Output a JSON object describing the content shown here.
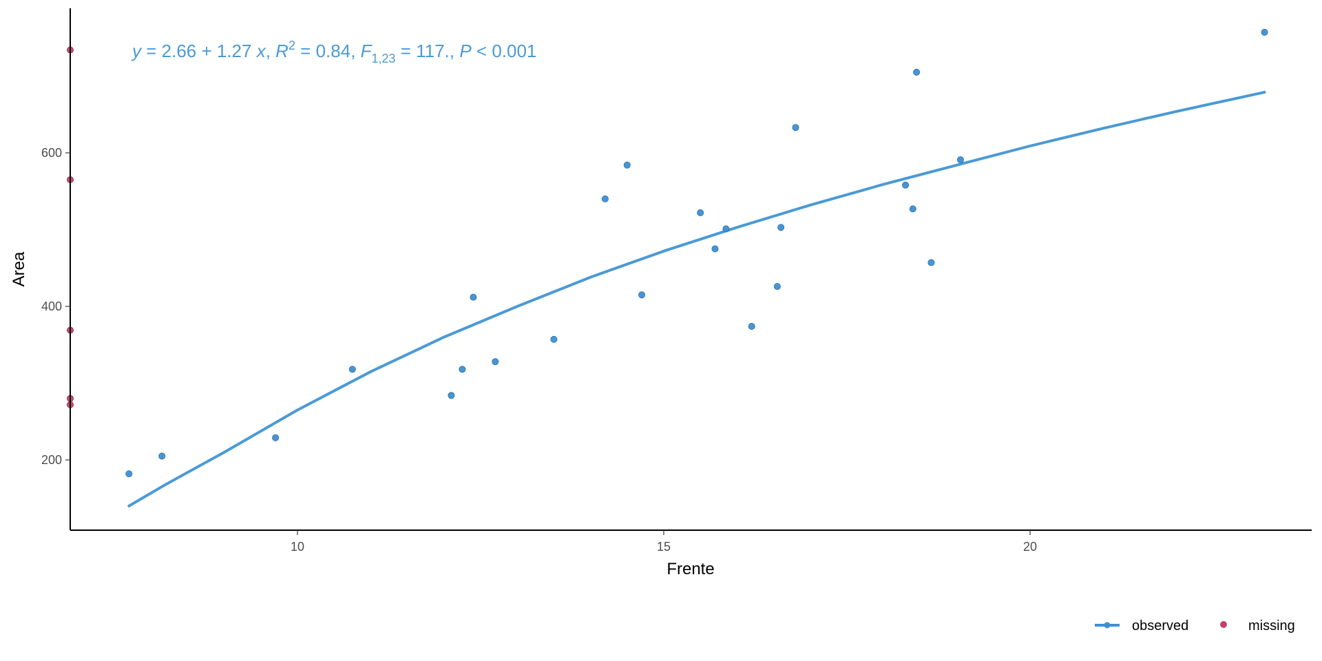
{
  "chart_data": {
    "type": "scatter",
    "xlabel": "Frente",
    "ylabel": "Area",
    "xlim": [
      6.9,
      23.9
    ],
    "ylim": [
      110,
      760
    ],
    "x_ticks": [
      10,
      15,
      20
    ],
    "y_ticks": [
      200,
      400,
      600
    ],
    "equation": {
      "y": "y",
      "eq_main": " = 2.66 + 1.27 ",
      "x": "x",
      "sep1": ", ",
      "R": "R",
      "R_sup": "2",
      "r2_value": " = 0.84, ",
      "F": "F",
      "F_sub": "1,23",
      "f_value": " = 117., ",
      "P": "P",
      "p_value": " < 0.001"
    },
    "legend": {
      "position": "bottom-right",
      "observed_label": "observed",
      "missing_label": "missing"
    },
    "colors": {
      "observed": "#3d8fd3",
      "observed_fit": "#4a9ad6",
      "missing": "#c0416a"
    },
    "series": [
      {
        "name": "observed",
        "points": [
          [
            7.7,
            182
          ],
          [
            8.15,
            205
          ],
          [
            9.7,
            229
          ],
          [
            10.75,
            318
          ],
          [
            12.1,
            284
          ],
          [
            12.25,
            318
          ],
          [
            12.4,
            412
          ],
          [
            12.7,
            328
          ],
          [
            13.5,
            357
          ],
          [
            14.2,
            540
          ],
          [
            14.5,
            584
          ],
          [
            14.7,
            415
          ],
          [
            15.5,
            522
          ],
          [
            15.7,
            475
          ],
          [
            15.85,
            501
          ],
          [
            16.2,
            374
          ],
          [
            16.55,
            426
          ],
          [
            16.6,
            503
          ],
          [
            16.8,
            633
          ],
          [
            18.3,
            558
          ],
          [
            18.4,
            527
          ],
          [
            18.45,
            705
          ],
          [
            18.65,
            457
          ],
          [
            19.05,
            591
          ],
          [
            23.2,
            757
          ]
        ]
      },
      {
        "name": "missing",
        "points": [
          [
            6.9,
            734
          ],
          [
            6.9,
            565
          ],
          [
            6.9,
            369
          ],
          [
            6.9,
            280
          ],
          [
            6.9,
            272
          ]
        ]
      }
    ],
    "fit": {
      "x": [
        7.7,
        8.2,
        9.0,
        10.0,
        11.0,
        12.0,
        13.0,
        14.0,
        15.0,
        16.0,
        17.0,
        18.0,
        19.0,
        20.0,
        21.0,
        22.0,
        23.2
      ],
      "y": [
        140,
        168,
        210,
        265,
        315,
        360,
        400,
        438,
        472,
        503,
        532,
        559,
        584,
        609,
        632,
        654,
        679
      ]
    }
  }
}
